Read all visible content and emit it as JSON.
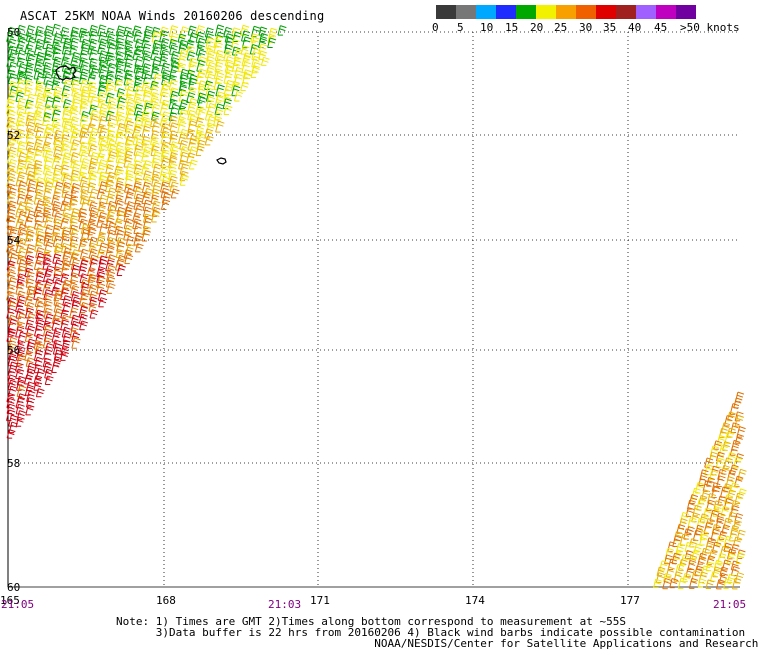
{
  "title": "ASCAT 25KM NOAA Winds 20160206 descending",
  "colorbar": {
    "labels": [
      "0",
      "5",
      "10",
      "15",
      "20",
      "25",
      "30",
      "35",
      "40",
      "45",
      ">50 knots"
    ],
    "colors": [
      "#3a3a3a",
      "#777777",
      "#00a8ff",
      "#1e2cff",
      "#00a800",
      "#f2f200",
      "#f7a000",
      "#f06000",
      "#e00000",
      "#a02020",
      "#a060ff",
      "#c000c0",
      "#7000a0"
    ]
  },
  "map": {
    "lat_labels": [
      "50",
      "52",
      "54",
      "56",
      "58",
      "60"
    ],
    "lon_labels": [
      "165",
      "168",
      "171",
      "174",
      "177"
    ],
    "time_labels": {
      "left": "21:05",
      "middle": "21:03",
      "right": "21:05"
    },
    "time_color": "#800080"
  },
  "notes": [
    "Note: 1) Times are GMT 2)Times along bottom correspond to measurement at ~55S",
    "      3)Data buffer is 22 hrs from 20160206 4) Black wind barbs indicate possible contamination",
    "                                       NOAA/NESDIS/Center for Satellite Applications and Research"
  ]
}
